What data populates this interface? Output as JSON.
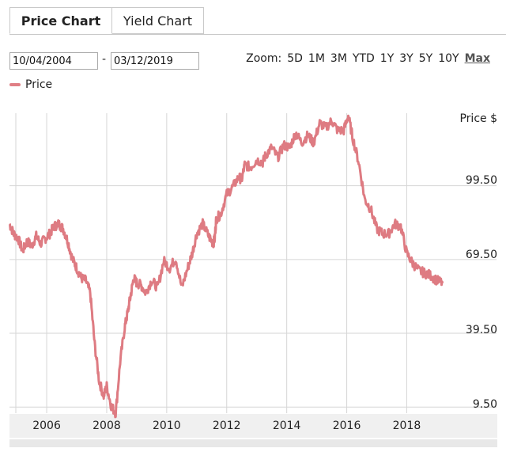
{
  "tabs": [
    {
      "label": "Price Chart",
      "active": true
    },
    {
      "label": "Yield Chart",
      "active": false
    }
  ],
  "date_range": {
    "from": "10/04/2004",
    "separator": "-",
    "to": "03/12/2019"
  },
  "zoom": {
    "label": "Zoom:",
    "options": [
      "5D",
      "1M",
      "3M",
      "YTD",
      "1Y",
      "3Y",
      "5Y",
      "10Y",
      "Max"
    ],
    "active": "Max"
  },
  "legend": {
    "label": "Price",
    "color": "#e07f85"
  },
  "colors": {
    "series": "#de7b82",
    "grid": "#d6d6d6",
    "axis_band": "#f0f0f0"
  },
  "chart_data": {
    "type": "line",
    "title": "",
    "xlabel": "",
    "ylabel": "Price $",
    "y_tick_labels": [
      "99.50",
      "69.50",
      "39.50",
      "9.50"
    ],
    "x_tick_labels": [
      "2006",
      "2008",
      "2010",
      "2012",
      "2014",
      "2016",
      "2018"
    ],
    "ylim": [
      7,
      129
    ],
    "xlim": [
      2004.76,
      2019.2
    ],
    "grid": true,
    "legend_position": "top-left",
    "series": [
      {
        "name": "Price",
        "x": [
          2004.76,
          2004.9,
          2005.05,
          2005.2,
          2005.35,
          2005.5,
          2005.65,
          2005.8,
          2005.95,
          2006.1,
          2006.25,
          2006.4,
          2006.55,
          2006.7,
          2006.85,
          2007.0,
          2007.15,
          2007.3,
          2007.45,
          2007.6,
          2007.75,
          2007.9,
          2008.0,
          2008.15,
          2008.3,
          2008.45,
          2008.6,
          2008.7,
          2008.8,
          2008.9,
          2009.0,
          2009.15,
          2009.3,
          2009.5,
          2009.7,
          2009.9,
          2010.1,
          2010.3,
          2010.5,
          2010.7,
          2010.85,
          2011.0,
          2011.2,
          2011.4,
          2011.55,
          2011.6,
          2011.65,
          2011.8,
          2012.0,
          2012.2,
          2012.4,
          2012.5,
          2012.6,
          2012.8,
          2013.0,
          2013.2,
          2013.3,
          2013.5,
          2013.7,
          2013.9,
          2014.1,
          2014.3,
          2014.5,
          2014.7,
          2014.9,
          2015.1,
          2015.3,
          2015.5,
          2015.7,
          2015.9,
          2016.05,
          2016.2,
          2016.4,
          2016.6,
          2016.8,
          2017.0,
          2017.2,
          2017.4,
          2017.6,
          2017.8,
          2018.0,
          2018.2,
          2018.4,
          2018.6,
          2018.8,
          2019.0,
          2019.2
        ],
        "y": [
          84,
          80,
          78,
          73,
          77,
          75,
          79,
          76,
          78,
          80,
          83,
          84,
          82,
          77,
          70,
          66,
          62,
          61,
          56,
          35,
          20,
          14,
          18,
          10,
          7,
          28,
          42,
          48,
          55,
          62,
          60,
          59,
          56,
          61,
          58,
          69,
          66,
          70,
          58,
          66,
          72,
          80,
          84,
          79,
          76,
          78,
          86,
          88,
          96,
          99,
          103,
          102,
          108,
          107,
          110,
          109,
          112,
          115,
          111,
          116,
          115,
          121,
          117,
          120,
          117,
          125,
          123,
          126,
          122,
          122,
          128,
          119,
          109,
          94,
          90,
          82,
          80,
          80,
          84,
          83,
          72,
          68,
          65,
          64,
          63,
          61,
          60
        ]
      }
    ]
  }
}
